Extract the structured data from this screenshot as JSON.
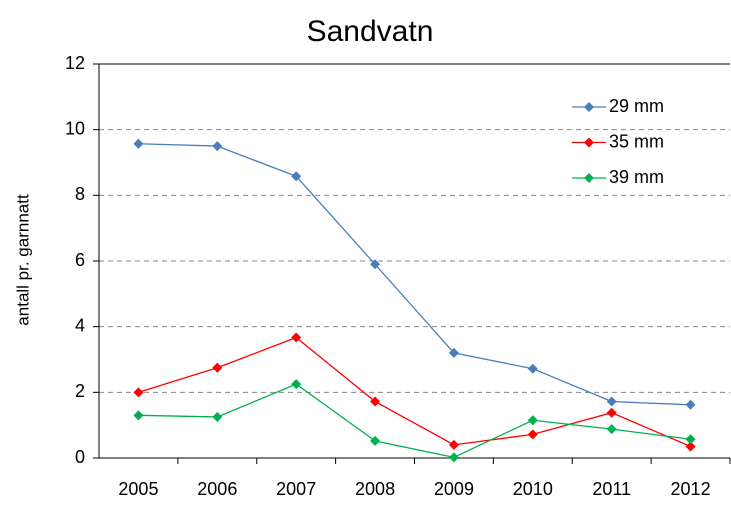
{
  "chart_data": {
    "type": "line",
    "title": "Sandvatn",
    "y_label": "antall pr.  garnnatt",
    "categories": [
      "2005",
      "2006",
      "2007",
      "2008",
      "2009",
      "2010",
      "2011",
      "2012"
    ],
    "series": [
      {
        "name": "29 mm",
        "color": "#4a7ebb",
        "values": [
          9.57,
          9.5,
          8.58,
          5.9,
          3.2,
          2.72,
          1.72,
          1.62
        ]
      },
      {
        "name": "35 mm",
        "color": "#ff0000",
        "values": [
          2.0,
          2.75,
          3.67,
          1.72,
          0.4,
          0.72,
          1.38,
          0.35
        ]
      },
      {
        "name": "39 mm",
        "color": "#00b050",
        "values": [
          1.3,
          1.25,
          2.25,
          0.52,
          0.02,
          1.15,
          0.88,
          0.57
        ]
      }
    ],
    "ylim": [
      0,
      12
    ],
    "yticks": [
      0,
      2,
      4,
      6,
      8,
      10,
      12
    ],
    "grid": true
  }
}
